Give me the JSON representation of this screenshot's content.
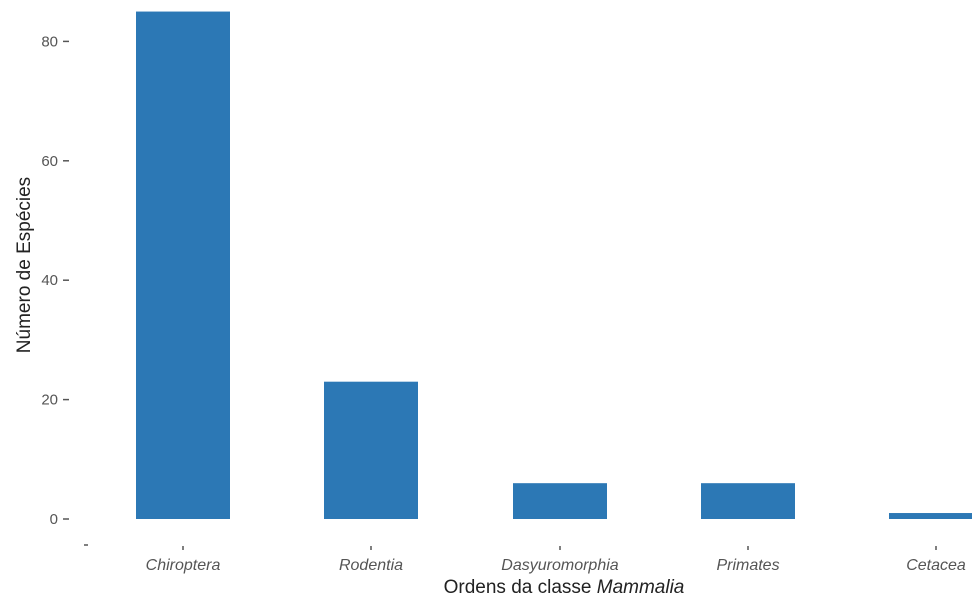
{
  "chart_data": {
    "type": "bar",
    "categories": [
      "Chiroptera",
      "Rodentia",
      "Dasyuromorphia",
      "Primates",
      "Cetacea"
    ],
    "values": [
      85,
      23,
      6,
      6,
      1
    ],
    "xlabel": "Ordens da classe ",
    "xlabel_italic": "Mammalia",
    "ylabel": "Número de Espécies",
    "ylim": [
      0,
      85
    ],
    "yticks": [
      0,
      20,
      40,
      60,
      80
    ],
    "grid": false,
    "bar_color": "#2c78b5"
  }
}
